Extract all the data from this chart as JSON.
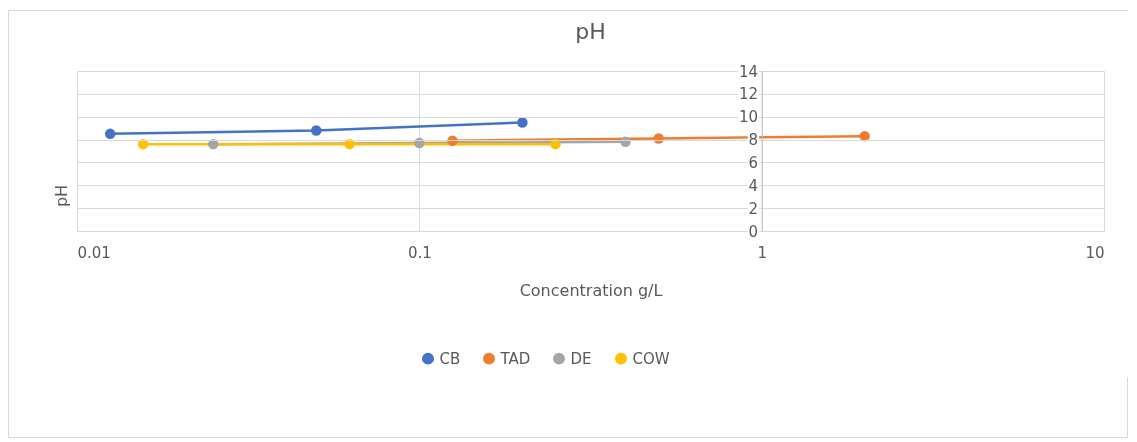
{
  "chart_data": {
    "type": "line",
    "title": "pH",
    "xlabel": "Concentration g/L",
    "ylabel": "pH",
    "log": "x",
    "grid": true,
    "legend": "bottom",
    "marker": "circle",
    "line_style": "solid",
    "xlim": [
      0.01,
      10
    ],
    "xticks": [
      0.01,
      0.1,
      1,
      10
    ],
    "ylim": [
      0,
      14
    ],
    "yticks": [
      0,
      2,
      4,
      6,
      8,
      10,
      12,
      14
    ],
    "series": [
      {
        "name": "CB",
        "color": "#4472c4",
        "x": [
          0.0125,
          0.05,
          0.2
        ],
        "values": [
          8.5,
          8.8,
          9.5
        ]
      },
      {
        "name": "TAD",
        "color": "#ed7d31",
        "x": [
          0.125,
          0.5,
          2
        ],
        "values": [
          7.9,
          8.1,
          8.3
        ]
      },
      {
        "name": "DE",
        "color": "#a5a5a5",
        "x": [
          0.025,
          0.1,
          0.4
        ],
        "values": [
          7.6,
          7.7,
          7.8
        ]
      },
      {
        "name": "COW",
        "color": "#ffc000",
        "x": [
          0.0156,
          0.0625,
          0.25
        ],
        "values": [
          7.6,
          7.6,
          7.6
        ]
      }
    ]
  }
}
